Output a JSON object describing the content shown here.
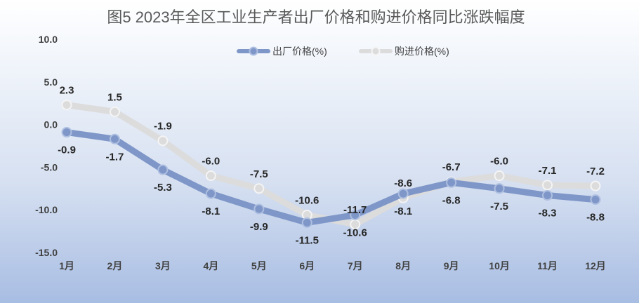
{
  "chart_data": {
    "type": "line",
    "title": "图5  2023年全区工业生产者出厂价格和购进价格同比涨跌幅度",
    "categories": [
      "1月",
      "2月",
      "3月",
      "4月",
      "5月",
      "6月",
      "7月",
      "8月",
      "9月",
      "10月",
      "11月",
      "12月"
    ],
    "y_ticks": [
      "10.0",
      "5.0",
      "0.0",
      "-5.0",
      "-10.0",
      "-15.0"
    ],
    "ylim": [
      -15,
      10
    ],
    "grid": false,
    "legend_position": "top",
    "series": [
      {
        "name": "出厂价格(%)",
        "color": "#7f97c8",
        "values": [
          -0.9,
          -1.7,
          -5.3,
          -8.1,
          -9.9,
          -11.5,
          -10.6,
          -8.1,
          -6.8,
          -7.5,
          -8.3,
          -8.8
        ],
        "labels": [
          "-0.9",
          "-1.7",
          "-5.3",
          "-8.1",
          "-9.9",
          "-11.5",
          "-10.6",
          "-8.1",
          "-6.8",
          "-7.5",
          "-8.3",
          "-8.8"
        ]
      },
      {
        "name": "购进价格(%)",
        "color": "#dcdcdc",
        "values": [
          2.3,
          1.5,
          -1.9,
          -6.0,
          -7.5,
          -10.6,
          -11.7,
          -8.6,
          -6.7,
          -6.0,
          -7.1,
          -7.2
        ],
        "labels": [
          "2.3",
          "1.5",
          "-1.9",
          "-6.0",
          "-7.5",
          "-10.6",
          "-11.7",
          "-8.6",
          "-6.7",
          "-6.0",
          "-7.1",
          "-7.2"
        ]
      }
    ]
  }
}
